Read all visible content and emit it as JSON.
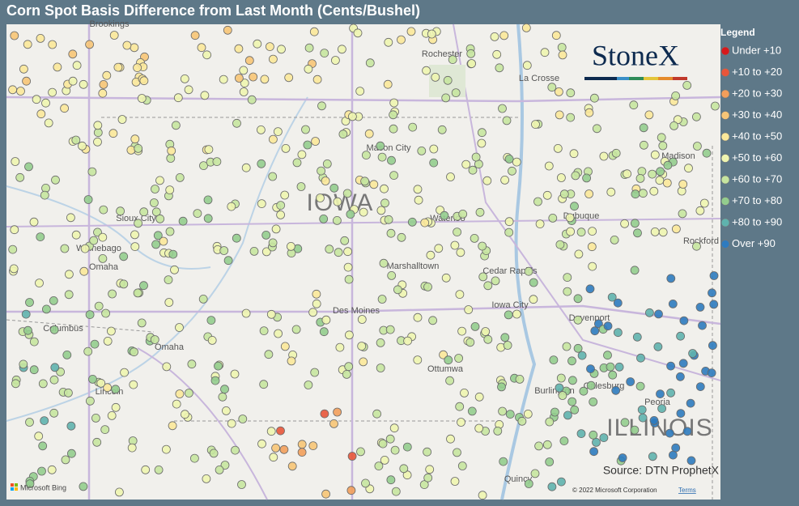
{
  "header": {
    "title": "Corn Spot Basis Difference from Last Month (Cents/Bushel)"
  },
  "legend": {
    "title": "Legend",
    "items": [
      {
        "label": "Under +10",
        "color": "#d7191c"
      },
      {
        "label": "+10 to +20",
        "color": "#e8553a"
      },
      {
        "label": "+20 to +30",
        "color": "#f29e5b"
      },
      {
        "label": "+30 to +40",
        "color": "#f7c577"
      },
      {
        "label": "+40 to +50",
        "color": "#fbe89a"
      },
      {
        "label": "+50 to +60",
        "color": "#eef5b0"
      },
      {
        "label": "+60 to +70",
        "color": "#c6e5a0"
      },
      {
        "label": "+70 to +80",
        "color": "#93cd8e"
      },
      {
        "label": "+80 to +90",
        "color": "#5fb3ae"
      },
      {
        "label": "Over +90",
        "color": "#2e7bbf"
      }
    ]
  },
  "map": {
    "labels": [
      "Brookings",
      "Rochester",
      "La Crosse",
      "Mason City",
      "Madison",
      "IOWA",
      "Sioux City",
      "Waterloo",
      "Dubuque",
      "Rockford",
      "Winnebago",
      "Omaha",
      "Marshalltown",
      "Cedar Rapids",
      "Des Moines",
      "Iowa City",
      "Davenport",
      "Columbus",
      "Omaha",
      "Lincoln",
      "Ottumwa",
      "Galesburg",
      "Peoria",
      "ILLINOIS",
      "Quincy",
      "Burlington"
    ]
  },
  "logo": "StoneX",
  "source": "Source: DTN ProphetX",
  "attribution": {
    "bing": "Microsoft Bing",
    "copyright": "© 2022 Microsoft Corporation",
    "terms": "Terms"
  }
}
